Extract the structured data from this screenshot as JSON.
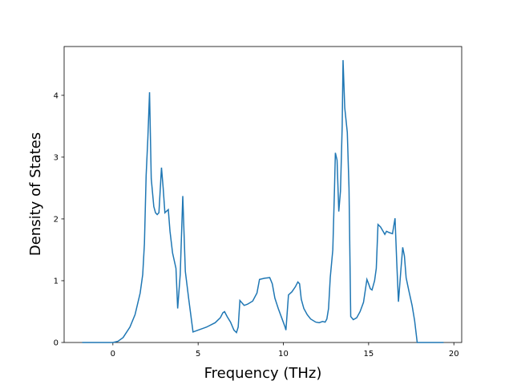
{
  "chart_data": {
    "type": "line",
    "xlabel": "Frequency (THz)",
    "ylabel": "Density of States",
    "xlim": [
      -2.86,
      20.46
    ],
    "ylim": [
      0,
      4.79
    ],
    "xticks": [
      0,
      5,
      10,
      15,
      20
    ],
    "yticks": [
      0,
      1,
      2,
      3,
      4
    ],
    "grid": false,
    "series": [
      {
        "color": "#1f77b4",
        "x": [
          -1.8,
          0,
          0.3,
          0.6,
          1.0,
          1.3,
          1.6,
          1.75,
          1.85,
          1.95,
          2.05,
          2.15,
          2.25,
          2.4,
          2.5,
          2.6,
          2.7,
          2.85,
          2.95,
          3.05,
          3.25,
          3.35,
          3.5,
          3.7,
          3.8,
          3.95,
          4.1,
          4.25,
          4.45,
          4.7,
          5.0,
          5.5,
          6.0,
          6.3,
          6.45,
          6.55,
          6.7,
          6.9,
          7.1,
          7.25,
          7.35,
          7.45,
          7.7,
          7.9,
          8.2,
          8.45,
          8.6,
          8.9,
          9.2,
          9.35,
          9.5,
          9.7,
          9.9,
          10.1,
          10.15,
          10.3,
          10.5,
          10.7,
          10.85,
          10.95,
          11.05,
          11.2,
          11.4,
          11.6,
          11.9,
          12.1,
          12.3,
          12.45,
          12.55,
          12.65,
          12.75,
          12.9,
          13.0,
          13.05,
          13.15,
          13.25,
          13.35,
          13.45,
          13.5,
          13.6,
          13.75,
          13.85,
          13.95,
          14.1,
          14.3,
          14.5,
          14.7,
          14.9,
          15.0,
          15.1,
          15.2,
          15.35,
          15.45,
          15.55,
          15.7,
          15.85,
          15.95,
          16.05,
          16.2,
          16.4,
          16.55,
          16.65,
          16.75,
          16.9,
          17.0,
          17.1,
          17.2,
          17.35,
          17.55,
          17.7,
          17.85,
          19.4
        ],
        "values": [
          0,
          0,
          0.02,
          0.08,
          0.25,
          0.45,
          0.8,
          1.1,
          1.6,
          2.7,
          3.3,
          4.05,
          2.65,
          2.2,
          2.1,
          2.07,
          2.1,
          2.83,
          2.5,
          2.1,
          2.15,
          1.8,
          1.45,
          1.2,
          0.55,
          1.1,
          2.37,
          1.15,
          0.7,
          0.17,
          0.2,
          0.25,
          0.32,
          0.4,
          0.48,
          0.5,
          0.42,
          0.33,
          0.2,
          0.16,
          0.25,
          0.68,
          0.6,
          0.62,
          0.67,
          0.8,
          1.02,
          1.04,
          1.05,
          0.95,
          0.72,
          0.55,
          0.4,
          0.25,
          0.2,
          0.77,
          0.82,
          0.9,
          0.98,
          0.95,
          0.7,
          0.55,
          0.45,
          0.38,
          0.33,
          0.32,
          0.34,
          0.33,
          0.38,
          0.55,
          1.05,
          1.5,
          2.5,
          3.07,
          2.95,
          2.12,
          2.45,
          3.5,
          4.57,
          3.8,
          3.4,
          2.5,
          0.42,
          0.37,
          0.4,
          0.5,
          0.65,
          1.02,
          0.95,
          0.87,
          0.85,
          1.0,
          1.2,
          1.91,
          1.87,
          1.8,
          1.75,
          1.8,
          1.78,
          1.76,
          2.01,
          1.3,
          0.66,
          1.2,
          1.54,
          1.4,
          1.05,
          0.85,
          0.6,
          0.35,
          0,
          0
        ]
      }
    ]
  }
}
